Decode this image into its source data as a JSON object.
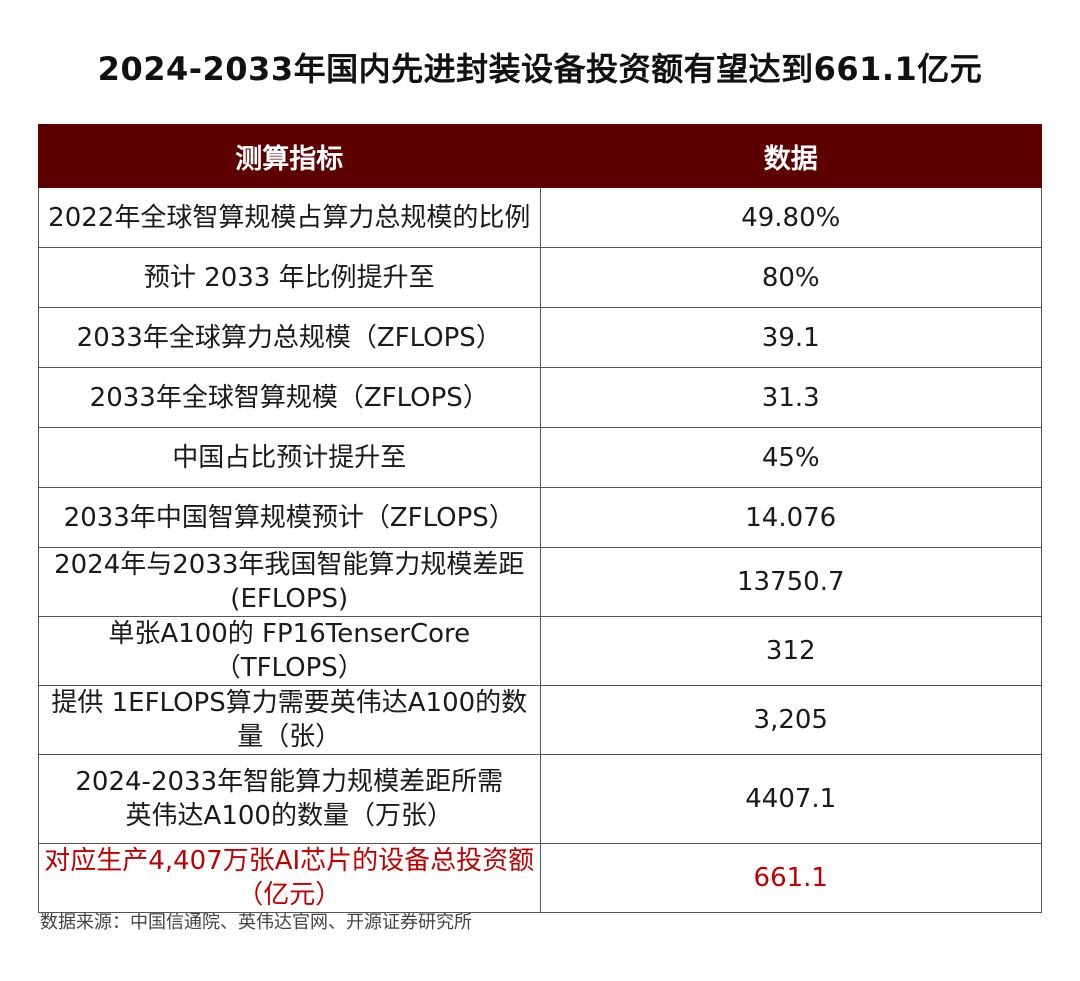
{
  "title": "2024-2033年国内先进封装设备投资额有望达到661.1亿元",
  "table": {
    "headers": [
      "测算指标",
      "数据"
    ],
    "rows": [
      {
        "metric": "2022年全球智算规模占算力总规模的比例",
        "value": "49.80%"
      },
      {
        "metric": "预计 2033 年比例提升至",
        "value": "80%"
      },
      {
        "metric": "2033年全球算力总规模（ZFLOPS）",
        "value": "39.1"
      },
      {
        "metric": "2033年全球智算规模（ZFLOPS）",
        "value": "31.3"
      },
      {
        "metric": "中国占比预计提升至",
        "value": "45%"
      },
      {
        "metric": "2033年中国智算规模预计（ZFLOPS）",
        "value": "14.076"
      },
      {
        "metric": "2024年与2033年我国智能算力规模差距 (EFLOPS)",
        "value": "13750.7"
      },
      {
        "metric": "单张A100的 FP16TenserCore（TFLOPS）",
        "value": "312"
      },
      {
        "metric": "提供 1EFLOPS算力需要英伟达A100的数量（张）",
        "value": "3,205"
      },
      {
        "metric_line1": "2024-2033年智能算力规模差距所需",
        "metric_line2": "英伟达A100的数量（万张）",
        "value": "4407.1"
      },
      {
        "metric": "对应生产4,407万张AI芯片的设备总投资额（亿元）",
        "value": "661.1"
      }
    ]
  },
  "source": "数据来源：中国信通院、英伟达官网、开源证券研究所",
  "colors": {
    "header_bg": "#5c0000",
    "highlight_text": "#c00000"
  }
}
